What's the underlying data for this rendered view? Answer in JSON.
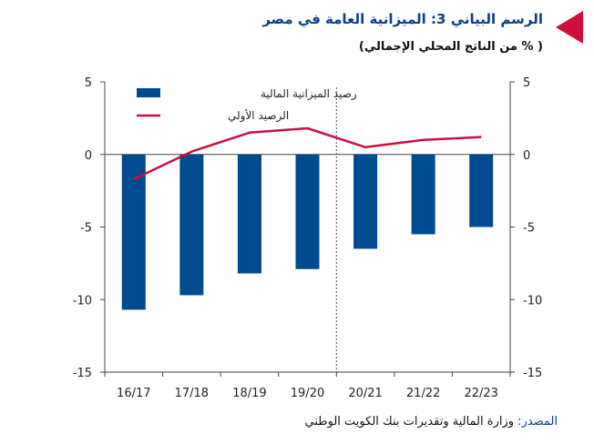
{
  "header": {
    "title": "الرسم البياني 3: الميزانية العامة في مصر",
    "subtitle": "( % من الناتج المحلي الإجمالي)"
  },
  "source": {
    "label": "المصدر:",
    "text": "وزارة المالية وتقديرات بنك الكويت الوطني"
  },
  "colors": {
    "bar": "#004a8f",
    "line": "#cf0f3c",
    "accent_marker": "#d0103a",
    "title": "#0a3d8f"
  },
  "chart_data": {
    "type": "bar",
    "categories": [
      "16/17",
      "17/18",
      "18/19",
      "19/20",
      "20/21",
      "21/22",
      "22/23"
    ],
    "series": [
      {
        "name": "رصيد الميزانية المالية",
        "type": "bar",
        "values": [
          -10.7,
          -9.7,
          -8.2,
          -7.9,
          -6.5,
          -5.5,
          -5.0
        ]
      },
      {
        "name": "الرصيد الأولي",
        "type": "line",
        "values": [
          -1.7,
          0.2,
          1.5,
          1.8,
          0.5,
          1.0,
          1.2
        ]
      }
    ],
    "ylim": [
      -15,
      5
    ],
    "yticks": [
      5,
      0,
      -5,
      -10,
      -15
    ],
    "ytick_labels": [
      "5",
      "0",
      "-5",
      "-10",
      "-15"
    ],
    "y2_ticks": [
      5,
      0,
      -5,
      -10,
      -15
    ],
    "y2_tick_labels": [
      "5",
      "0",
      "-5",
      "-10",
      "-15"
    ],
    "forecast_divider_between": [
      "19/20",
      "20/21"
    ],
    "legend_position": "top-left",
    "grid": false
  }
}
